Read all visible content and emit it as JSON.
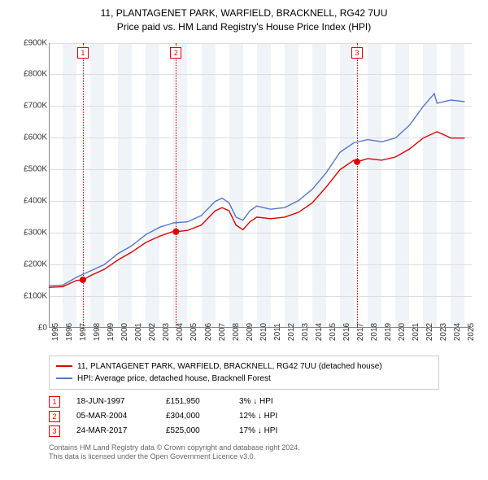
{
  "title_line1": "11, PLANTAGENET PARK, WARFIELD, BRACKNELL, RG42 7UU",
  "title_line2": "Price paid vs. HM Land Registry's House Price Index (HPI)",
  "chart": {
    "type": "line",
    "background_color": "#ffffff",
    "grid_color": "#dddddd",
    "band_color": "#f0f4f8",
    "x_years": [
      1995,
      1996,
      1997,
      1998,
      1999,
      2000,
      2001,
      2002,
      2003,
      2004,
      2005,
      2006,
      2007,
      2008,
      2009,
      2010,
      2011,
      2012,
      2013,
      2014,
      2015,
      2016,
      2017,
      2018,
      2019,
      2020,
      2021,
      2022,
      2023,
      2024,
      2025
    ],
    "x_range": [
      1995,
      2025.5
    ],
    "y_ticks": [
      0,
      100,
      200,
      300,
      400,
      500,
      600,
      700,
      800,
      900
    ],
    "y_tick_labels": [
      "£0",
      "£100K",
      "£200K",
      "£300K",
      "£400K",
      "£500K",
      "£600K",
      "£700K",
      "£800K",
      "£900K"
    ],
    "y_range": [
      0,
      900
    ],
    "y_label_fontsize": 10,
    "x_label_fontsize": 10,
    "line_width": 1.4,
    "series": [
      {
        "name": "property",
        "color": "#e00000",
        "points": [
          [
            1995,
            128
          ],
          [
            1996,
            130
          ],
          [
            1997,
            150
          ],
          [
            1997.5,
            152
          ],
          [
            1998,
            165
          ],
          [
            1999,
            185
          ],
          [
            2000,
            215
          ],
          [
            2001,
            240
          ],
          [
            2002,
            270
          ],
          [
            2003,
            290
          ],
          [
            2004,
            305
          ],
          [
            2004.2,
            304
          ],
          [
            2005,
            308
          ],
          [
            2006,
            325
          ],
          [
            2007,
            370
          ],
          [
            2007.5,
            380
          ],
          [
            2008,
            370
          ],
          [
            2008.5,
            325
          ],
          [
            2009,
            310
          ],
          [
            2009.5,
            335
          ],
          [
            2010,
            350
          ],
          [
            2011,
            345
          ],
          [
            2012,
            350
          ],
          [
            2013,
            365
          ],
          [
            2014,
            395
          ],
          [
            2015,
            445
          ],
          [
            2016,
            500
          ],
          [
            2017,
            530
          ],
          [
            2017.24,
            525
          ],
          [
            2018,
            535
          ],
          [
            2019,
            530
          ],
          [
            2020,
            540
          ],
          [
            2021,
            565
          ],
          [
            2022,
            600
          ],
          [
            2023,
            620
          ],
          [
            2024,
            600
          ],
          [
            2025,
            600
          ]
        ]
      },
      {
        "name": "hpi",
        "color": "#5577cc",
        "points": [
          [
            1995,
            133
          ],
          [
            1996,
            135
          ],
          [
            1997,
            160
          ],
          [
            1998,
            180
          ],
          [
            1999,
            200
          ],
          [
            2000,
            235
          ],
          [
            2001,
            260
          ],
          [
            2002,
            295
          ],
          [
            2003,
            318
          ],
          [
            2004,
            332
          ],
          [
            2005,
            335
          ],
          [
            2006,
            355
          ],
          [
            2007,
            400
          ],
          [
            2007.5,
            410
          ],
          [
            2008,
            395
          ],
          [
            2008.5,
            350
          ],
          [
            2009,
            340
          ],
          [
            2009.5,
            370
          ],
          [
            2010,
            385
          ],
          [
            2011,
            375
          ],
          [
            2012,
            380
          ],
          [
            2013,
            402
          ],
          [
            2014,
            438
          ],
          [
            2015,
            490
          ],
          [
            2016,
            555
          ],
          [
            2017,
            585
          ],
          [
            2018,
            595
          ],
          [
            2019,
            588
          ],
          [
            2020,
            600
          ],
          [
            2021,
            640
          ],
          [
            2022,
            700
          ],
          [
            2022.8,
            740
          ],
          [
            2023,
            710
          ],
          [
            2024,
            720
          ],
          [
            2025,
            715
          ]
        ]
      }
    ],
    "sale_markers": [
      {
        "n": "1",
        "x": 1997.46,
        "y": 152
      },
      {
        "n": "2",
        "x": 2004.17,
        "y": 304
      },
      {
        "n": "3",
        "x": 2017.23,
        "y": 525
      }
    ],
    "marker_radius": 4
  },
  "legend": {
    "items": [
      {
        "color": "#e00000",
        "label": "11, PLANTAGENET PARK, WARFIELD, BRACKNELL, RG42 7UU (detached house)"
      },
      {
        "color": "#5577cc",
        "label": "HPI: Average price, detached house, Bracknell Forest"
      }
    ]
  },
  "sales": [
    {
      "n": "1",
      "date": "18-JUN-1997",
      "price": "£151,950",
      "hpi": "3% ↓ HPI"
    },
    {
      "n": "2",
      "date": "05-MAR-2004",
      "price": "£304,000",
      "hpi": "12% ↓ HPI"
    },
    {
      "n": "3",
      "date": "24-MAR-2017",
      "price": "£525,000",
      "hpi": "17% ↓ HPI"
    }
  ],
  "footer_line1": "Contains HM Land Registry data © Crown copyright and database right 2024.",
  "footer_line2": "This data is licensed under the Open Government Licence v3.0."
}
